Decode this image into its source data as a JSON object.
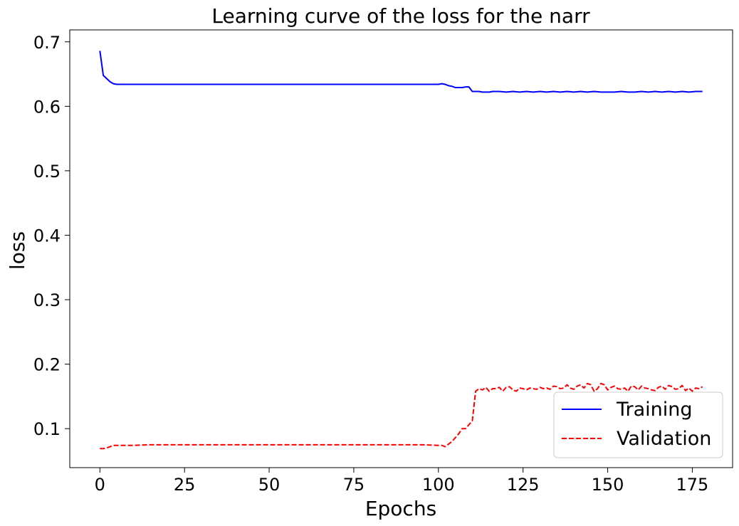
{
  "chart_data": {
    "type": "line",
    "title": "Learning curve of the loss for the narr",
    "xlabel": "Epochs",
    "ylabel": "loss",
    "xlim": [
      -8.9,
      186.9
    ],
    "ylim": [
      0.0395,
      0.7185
    ],
    "xticks": [
      0,
      25,
      50,
      75,
      100,
      125,
      150,
      175
    ],
    "yticks": [
      0.1,
      0.2,
      0.3,
      0.4,
      0.5,
      0.6,
      0.7
    ],
    "grid": false,
    "legend_position": "lower right",
    "series": [
      {
        "name": "Training",
        "color": "#0000ff",
        "style": "solid",
        "x": [
          0,
          1,
          2,
          3,
          4,
          5,
          6,
          8,
          10,
          15,
          20,
          30,
          40,
          50,
          60,
          70,
          80,
          90,
          100,
          101,
          102,
          103,
          104,
          105,
          106,
          107,
          108,
          109,
          110,
          111,
          112,
          113,
          114,
          115,
          116,
          118,
          120,
          122,
          124,
          126,
          128,
          130,
          132,
          134,
          136,
          138,
          140,
          142,
          144,
          146,
          148,
          150,
          152,
          154,
          156,
          158,
          160,
          162,
          164,
          166,
          168,
          170,
          172,
          174,
          176,
          178
        ],
        "values": [
          0.686,
          0.648,
          0.643,
          0.638,
          0.635,
          0.634,
          0.634,
          0.634,
          0.634,
          0.634,
          0.634,
          0.634,
          0.634,
          0.634,
          0.634,
          0.634,
          0.634,
          0.634,
          0.634,
          0.635,
          0.634,
          0.632,
          0.631,
          0.629,
          0.629,
          0.629,
          0.63,
          0.63,
          0.623,
          0.623,
          0.623,
          0.622,
          0.622,
          0.622,
          0.623,
          0.623,
          0.622,
          0.623,
          0.622,
          0.623,
          0.622,
          0.623,
          0.622,
          0.623,
          0.622,
          0.623,
          0.622,
          0.623,
          0.622,
          0.623,
          0.622,
          0.622,
          0.622,
          0.623,
          0.622,
          0.622,
          0.623,
          0.622,
          0.623,
          0.622,
          0.623,
          0.622,
          0.623,
          0.622,
          0.623,
          0.623
        ]
      },
      {
        "name": "Validation",
        "color": "#ff0000",
        "style": "dashed",
        "x": [
          0,
          1,
          2,
          3,
          4,
          5,
          6,
          8,
          10,
          15,
          20,
          25,
          30,
          35,
          40,
          45,
          50,
          55,
          60,
          65,
          70,
          75,
          80,
          85,
          90,
          95,
          100,
          101,
          102,
          103,
          104,
          105,
          106,
          107,
          108,
          109,
          110,
          111,
          112,
          113,
          114,
          115,
          116,
          117,
          118,
          119,
          120,
          121,
          122,
          123,
          124,
          125,
          126,
          127,
          128,
          129,
          130,
          131,
          132,
          133,
          134,
          135,
          136,
          137,
          138,
          139,
          140,
          141,
          142,
          143,
          144,
          145,
          146,
          147,
          148,
          149,
          150,
          151,
          152,
          153,
          154,
          155,
          156,
          157,
          158,
          159,
          160,
          161,
          162,
          163,
          164,
          165,
          166,
          167,
          168,
          169,
          170,
          171,
          172,
          173,
          174,
          175,
          176,
          177,
          178
        ],
        "values": [
          0.069,
          0.069,
          0.07,
          0.072,
          0.074,
          0.074,
          0.074,
          0.074,
          0.074,
          0.075,
          0.075,
          0.075,
          0.075,
          0.075,
          0.075,
          0.075,
          0.075,
          0.075,
          0.075,
          0.075,
          0.075,
          0.075,
          0.075,
          0.075,
          0.075,
          0.075,
          0.074,
          0.074,
          0.072,
          0.076,
          0.08,
          0.086,
          0.092,
          0.1,
          0.1,
          0.106,
          0.112,
          0.158,
          0.162,
          0.16,
          0.164,
          0.158,
          0.162,
          0.162,
          0.164,
          0.158,
          0.164,
          0.165,
          0.16,
          0.158,
          0.163,
          0.162,
          0.16,
          0.163,
          0.162,
          0.161,
          0.164,
          0.162,
          0.163,
          0.161,
          0.166,
          0.165,
          0.162,
          0.163,
          0.168,
          0.163,
          0.161,
          0.166,
          0.168,
          0.163,
          0.17,
          0.168,
          0.158,
          0.162,
          0.17,
          0.168,
          0.16,
          0.164,
          0.166,
          0.162,
          0.161,
          0.163,
          0.158,
          0.166,
          0.165,
          0.16,
          0.166,
          0.163,
          0.162,
          0.16,
          0.159,
          0.164,
          0.166,
          0.161,
          0.167,
          0.165,
          0.161,
          0.162,
          0.167,
          0.159,
          0.163,
          0.158,
          0.163,
          0.162,
          0.165
        ]
      }
    ]
  }
}
